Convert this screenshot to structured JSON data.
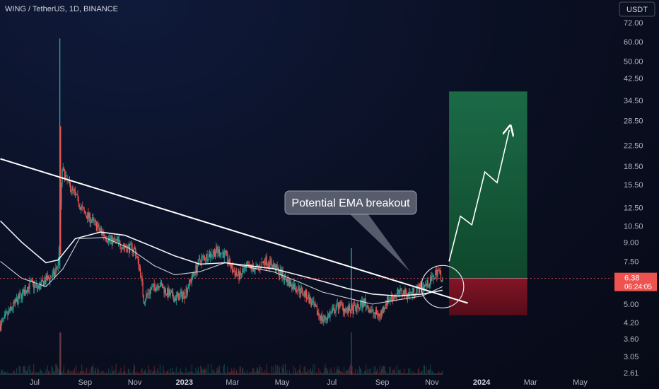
{
  "header": {
    "symbol_line": "WING / TetherUS, 1D, BINANCE",
    "currency_badge": "USDT"
  },
  "annotation": {
    "callout_text": "Potential EMA breakout"
  },
  "price_badge": {
    "price": "6.38",
    "countdown": "06:24:05"
  },
  "chart_data": {
    "type": "line",
    "title": "WING / TetherUS, 1D, BINANCE",
    "ylabel": "",
    "xlabel": "",
    "y_scale": "log",
    "ylim": [
      2.55,
      80
    ],
    "y_ticks": [
      {
        "label": "72.00",
        "value": 72.0
      },
      {
        "label": "60.00",
        "value": 60.0
      },
      {
        "label": "50.00",
        "value": 50.0
      },
      {
        "label": "42.50",
        "value": 42.5
      },
      {
        "label": "34.50",
        "value": 34.5
      },
      {
        "label": "28.50",
        "value": 28.5
      },
      {
        "label": "22.50",
        "value": 22.5
      },
      {
        "label": "18.50",
        "value": 18.5
      },
      {
        "label": "15.50",
        "value": 15.5
      },
      {
        "label": "12.50",
        "value": 12.5
      },
      {
        "label": "10.50",
        "value": 10.5
      },
      {
        "label": "9.00",
        "value": 9.0
      },
      {
        "label": "7.50",
        "value": 7.5
      },
      {
        "label": "5.00",
        "value": 5.0
      },
      {
        "label": "4.20",
        "value": 4.2
      },
      {
        "label": "3.60",
        "value": 3.6
      },
      {
        "label": "3.05",
        "value": 3.05
      },
      {
        "label": "2.61",
        "value": 2.61
      }
    ],
    "x_ticks": [
      {
        "label": "Jul",
        "date": "2022-07-01",
        "bold": false
      },
      {
        "label": "Sep",
        "date": "2022-09-01",
        "bold": false
      },
      {
        "label": "Nov",
        "date": "2022-11-01",
        "bold": false
      },
      {
        "label": "2023",
        "date": "2023-01-01",
        "bold": true
      },
      {
        "label": "Mar",
        "date": "2023-03-01",
        "bold": false
      },
      {
        "label": "May",
        "date": "2023-05-01",
        "bold": false
      },
      {
        "label": "Jul",
        "date": "2023-07-01",
        "bold": false
      },
      {
        "label": "Sep",
        "date": "2023-09-01",
        "bold": false
      },
      {
        "label": "Nov",
        "date": "2023-11-01",
        "bold": false
      },
      {
        "label": "2024",
        "date": "2024-01-01",
        "bold": true
      },
      {
        "label": "Mar",
        "date": "2024-03-01",
        "bold": false
      },
      {
        "label": "May",
        "date": "2024-05-01",
        "bold": false
      }
    ],
    "last_price": 6.38,
    "series": [
      {
        "name": "",
        "kind": "price-close",
        "color": "#26a69a",
        "points": [
          [
            "2022-05-20",
            4.1
          ],
          [
            "2022-06-01",
            4.7
          ],
          [
            "2022-06-10",
            5.2
          ],
          [
            "2022-06-18",
            5.6
          ],
          [
            "2022-06-26",
            6.1
          ],
          [
            "2022-07-05",
            5.8
          ],
          [
            "2022-07-15",
            6.3
          ],
          [
            "2022-07-25",
            6.6
          ],
          [
            "2022-07-30",
            7.4
          ],
          [
            "2022-08-04",
            18.0
          ],
          [
            "2022-08-10",
            16.0
          ],
          [
            "2022-08-20",
            14.0
          ],
          [
            "2022-08-30",
            12.0
          ],
          [
            "2022-09-10",
            11.0
          ],
          [
            "2022-09-20",
            10.0
          ],
          [
            "2022-10-01",
            9.2
          ],
          [
            "2022-10-10",
            9.0
          ],
          [
            "2022-10-20",
            8.6
          ],
          [
            "2022-11-01",
            8.4
          ],
          [
            "2022-11-08",
            6.8
          ],
          [
            "2022-11-12",
            5.2
          ],
          [
            "2022-11-20",
            5.7
          ],
          [
            "2022-12-01",
            6.1
          ],
          [
            "2022-12-10",
            5.6
          ],
          [
            "2022-12-20",
            5.3
          ],
          [
            "2023-01-01",
            5.5
          ],
          [
            "2023-01-10",
            6.4
          ],
          [
            "2023-01-20",
            7.6
          ],
          [
            "2023-02-01",
            8.0
          ],
          [
            "2023-02-10",
            8.3
          ],
          [
            "2023-02-20",
            8.0
          ],
          [
            "2023-03-01",
            6.9
          ],
          [
            "2023-03-10",
            6.5
          ],
          [
            "2023-03-20",
            7.1
          ],
          [
            "2023-04-01",
            7.0
          ],
          [
            "2023-04-10",
            7.6
          ],
          [
            "2023-04-20",
            7.2
          ],
          [
            "2023-05-01",
            6.6
          ],
          [
            "2023-05-10",
            6.1
          ],
          [
            "2023-05-20",
            5.8
          ],
          [
            "2023-06-01",
            5.4
          ],
          [
            "2023-06-10",
            4.8
          ],
          [
            "2023-06-20",
            4.3
          ],
          [
            "2023-07-01",
            4.6
          ],
          [
            "2023-07-10",
            5.0
          ],
          [
            "2023-07-20",
            4.7
          ],
          [
            "2023-08-01",
            4.8
          ],
          [
            "2023-08-10",
            5.1
          ],
          [
            "2023-08-20",
            4.6
          ],
          [
            "2023-08-30",
            4.5
          ],
          [
            "2023-09-05",
            5.1
          ],
          [
            "2023-09-15",
            5.4
          ],
          [
            "2023-09-25",
            5.6
          ],
          [
            "2023-10-05",
            5.5
          ],
          [
            "2023-10-15",
            5.8
          ],
          [
            "2023-10-25",
            6.0
          ],
          [
            "2023-11-01",
            6.3
          ],
          [
            "2023-11-08",
            6.9
          ],
          [
            "2023-11-14",
            6.38
          ]
        ]
      },
      {
        "name": "",
        "kind": "ema-slow",
        "color": "#ffffff",
        "points": [
          [
            "2022-05-20",
            11.0
          ],
          [
            "2022-06-15",
            9.0
          ],
          [
            "2022-07-15",
            7.4
          ],
          [
            "2022-07-30",
            7.6
          ],
          [
            "2022-08-20",
            9.3
          ],
          [
            "2022-09-20",
            9.9
          ],
          [
            "2022-10-20",
            9.6
          ],
          [
            "2022-11-20",
            8.7
          ],
          [
            "2022-12-20",
            7.9
          ],
          [
            "2023-01-20",
            7.3
          ],
          [
            "2023-02-20",
            7.4
          ],
          [
            "2023-03-20",
            7.2
          ],
          [
            "2023-04-20",
            7.0
          ],
          [
            "2023-05-20",
            6.6
          ],
          [
            "2023-06-20",
            6.2
          ],
          [
            "2023-07-20",
            5.8
          ],
          [
            "2023-08-20",
            5.5
          ],
          [
            "2023-09-20",
            5.4
          ],
          [
            "2023-10-20",
            5.5
          ],
          [
            "2023-11-14",
            5.7
          ]
        ]
      },
      {
        "name": "",
        "kind": "ema-fast",
        "color": "#ffffff",
        "points": [
          [
            "2022-05-20",
            7.5
          ],
          [
            "2022-06-15",
            6.4
          ],
          [
            "2022-07-15",
            5.9
          ],
          [
            "2022-08-05",
            7.0
          ],
          [
            "2022-08-25",
            9.3
          ],
          [
            "2022-09-25",
            9.4
          ],
          [
            "2022-10-25",
            8.5
          ],
          [
            "2022-11-25",
            7.2
          ],
          [
            "2022-12-20",
            6.6
          ],
          [
            "2023-01-20",
            6.8
          ],
          [
            "2023-02-20",
            7.4
          ],
          [
            "2023-03-20",
            7.1
          ],
          [
            "2023-04-20",
            6.8
          ],
          [
            "2023-05-20",
            6.2
          ],
          [
            "2023-06-20",
            5.6
          ],
          [
            "2023-07-20",
            5.3
          ],
          [
            "2023-08-20",
            5.0
          ],
          [
            "2023-09-20",
            5.2
          ],
          [
            "2023-10-20",
            5.4
          ],
          [
            "2023-11-14",
            5.9
          ]
        ]
      },
      {
        "name": "",
        "kind": "trendline",
        "color": "#ffffff",
        "points": [
          [
            "2022-05-20",
            19.8
          ],
          [
            "2023-12-15",
            5.05
          ]
        ]
      },
      {
        "name": "",
        "kind": "projection-arrow",
        "color": "#ffffff",
        "points": [
          [
            "2023-11-22",
            7.5
          ],
          [
            "2023-12-06",
            11.5
          ],
          [
            "2023-12-20",
            10.6
          ],
          [
            "2024-01-05",
            17.5
          ],
          [
            "2024-01-20",
            15.8
          ],
          [
            "2024-02-04",
            26.0
          ]
        ]
      }
    ],
    "spikes": [
      {
        "date": "2022-08-01",
        "high": 62.0,
        "low": 7.0,
        "color": "#26a69a"
      },
      {
        "date": "2022-08-02",
        "high": 27.0,
        "low": 8.0,
        "color": "#ef5350"
      },
      {
        "date": "2023-07-25",
        "high": 8.5,
        "low": 4.7,
        "color": "#26a69a"
      }
    ],
    "position_tool": {
      "start": "2023-11-22",
      "end": "2024-02-26",
      "entry": 6.38,
      "target": 37.5,
      "stop": 4.5,
      "profit_color": "#1b5e3a",
      "loss_color": "#7a1320"
    },
    "highlight_circle": {
      "center_date": "2023-11-14",
      "center_value": 5.9,
      "label": ""
    },
    "grid": false,
    "legend": "none"
  }
}
